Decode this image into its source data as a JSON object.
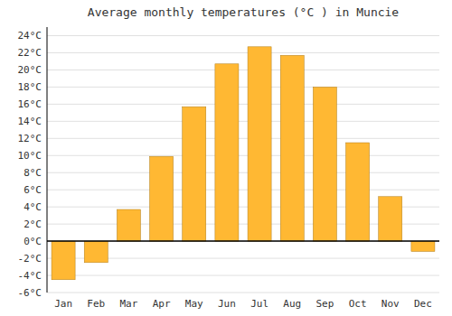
{
  "chart_data": {
    "type": "bar",
    "title": "Average monthly temperatures (°C ) in Muncie",
    "categories": [
      "Jan",
      "Feb",
      "Mar",
      "Apr",
      "May",
      "Jun",
      "Jul",
      "Aug",
      "Sep",
      "Oct",
      "Nov",
      "Dec"
    ],
    "values": [
      -4.5,
      -2.5,
      3.7,
      9.9,
      15.7,
      20.7,
      22.7,
      21.7,
      18.0,
      11.5,
      5.2,
      -1.2
    ],
    "color": "#FFB833",
    "ylim": [
      -6,
      25
    ],
    "yticks": [
      {
        "value": -6,
        "label": "-6°C"
      },
      {
        "value": -4,
        "label": "-4°C"
      },
      {
        "value": -2,
        "label": "-2°C"
      },
      {
        "value": 0,
        "label": "0°C"
      },
      {
        "value": 2,
        "label": "2°C"
      },
      {
        "value": 4,
        "label": "4°C"
      },
      {
        "value": 6,
        "label": "6°C"
      },
      {
        "value": 8,
        "label": "8°C"
      },
      {
        "value": 10,
        "label": "10°C"
      },
      {
        "value": 12,
        "label": "12°C"
      },
      {
        "value": 14,
        "label": "14°C"
      },
      {
        "value": 16,
        "label": "16°C"
      },
      {
        "value": 18,
        "label": "18°C"
      },
      {
        "value": 20,
        "label": "20°C"
      },
      {
        "value": 22,
        "label": "22°C"
      },
      {
        "value": 24,
        "label": "24°C"
      }
    ],
    "grid": true
  }
}
